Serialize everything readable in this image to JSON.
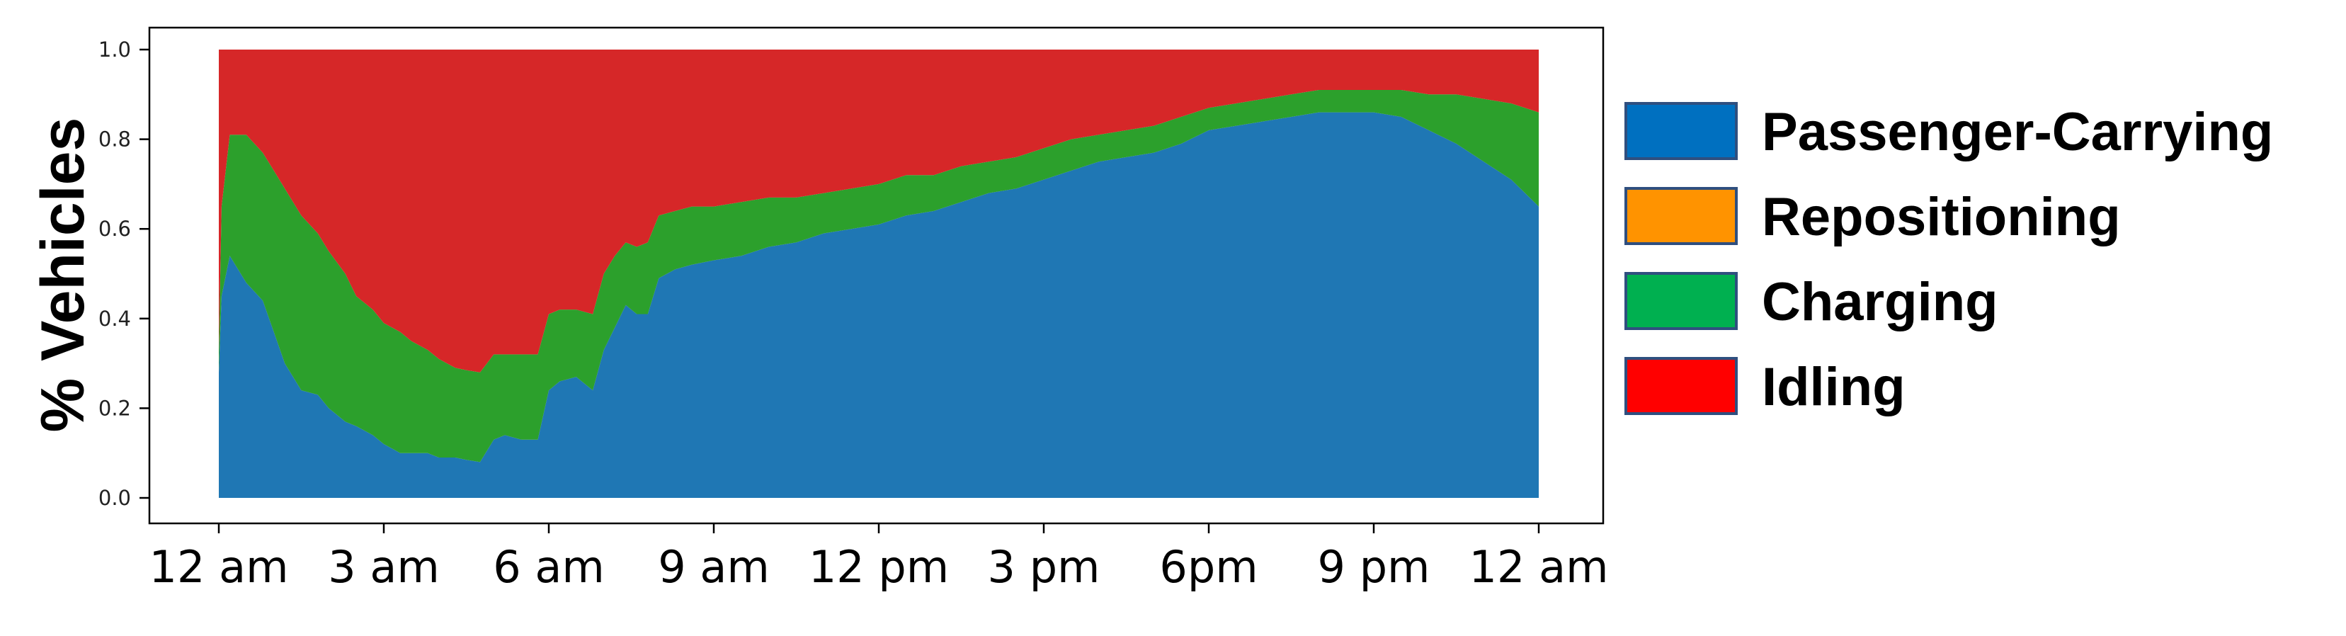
{
  "chart_data": {
    "type": "area",
    "stacked": true,
    "ylabel": "% Vehicles",
    "xlabel": "",
    "ylim": [
      0,
      1.05
    ],
    "yticks": [
      "0.0",
      "0.2",
      "0.4",
      "0.6",
      "0.8",
      "1.0"
    ],
    "ytick_values": [
      0.0,
      0.2,
      0.4,
      0.6,
      0.8,
      1.0
    ],
    "x_range_hours": [
      0,
      24
    ],
    "xticks": [
      {
        "hour": 0,
        "label": "12 am"
      },
      {
        "hour": 3,
        "label": "3 am"
      },
      {
        "hour": 6,
        "label": "6 am"
      },
      {
        "hour": 9,
        "label": "9 am"
      },
      {
        "hour": 12,
        "label": "12 pm"
      },
      {
        "hour": 15,
        "label": "3 pm"
      },
      {
        "hour": 18,
        "label": "6pm"
      },
      {
        "hour": 21,
        "label": "9 pm"
      },
      {
        "hour": 24,
        "label": "12 am"
      }
    ],
    "legend_position": "right",
    "grid": false,
    "x": [
      0,
      0.05,
      0.2,
      0.5,
      0.8,
      1.0,
      1.2,
      1.5,
      1.8,
      2.0,
      2.3,
      2.5,
      2.8,
      3.0,
      3.3,
      3.5,
      3.8,
      4.0,
      4.3,
      4.5,
      4.75,
      5.0,
      5.2,
      5.5,
      5.8,
      6.0,
      6.2,
      6.5,
      6.8,
      7.0,
      7.2,
      7.4,
      7.6,
      7.8,
      8.0,
      8.3,
      8.6,
      9.0,
      9.5,
      10.0,
      10.5,
      11.0,
      11.5,
      12.0,
      12.5,
      13.0,
      13.5,
      14.0,
      14.5,
      15.0,
      15.5,
      16.0,
      16.5,
      17.0,
      17.5,
      18.0,
      18.5,
      19.0,
      19.5,
      20.0,
      20.5,
      21.0,
      21.5,
      22.0,
      22.5,
      23.0,
      23.5,
      24.0
    ],
    "series": [
      {
        "name": "Passenger-Carrying",
        "color": "#1f77b4",
        "values": [
          0.28,
          0.45,
          0.54,
          0.48,
          0.44,
          0.37,
          0.3,
          0.24,
          0.23,
          0.2,
          0.17,
          0.16,
          0.14,
          0.12,
          0.1,
          0.1,
          0.1,
          0.09,
          0.09,
          0.085,
          0.08,
          0.13,
          0.14,
          0.13,
          0.13,
          0.24,
          0.26,
          0.27,
          0.24,
          0.33,
          0.38,
          0.43,
          0.41,
          0.41,
          0.49,
          0.51,
          0.52,
          0.53,
          0.54,
          0.56,
          0.57,
          0.59,
          0.6,
          0.61,
          0.63,
          0.64,
          0.66,
          0.68,
          0.69,
          0.71,
          0.73,
          0.75,
          0.76,
          0.77,
          0.79,
          0.82,
          0.83,
          0.84,
          0.85,
          0.86,
          0.86,
          0.86,
          0.85,
          0.82,
          0.79,
          0.75,
          0.71,
          0.65
        ]
      },
      {
        "name": "Repositioning",
        "color": "#ff8c00",
        "values": [
          0,
          0,
          0,
          0,
          0,
          0,
          0,
          0,
          0,
          0,
          0,
          0,
          0,
          0,
          0,
          0,
          0,
          0,
          0,
          0,
          0,
          0,
          0,
          0,
          0,
          0,
          0,
          0,
          0,
          0,
          0,
          0,
          0,
          0,
          0,
          0,
          0,
          0,
          0,
          0,
          0,
          0,
          0,
          0,
          0,
          0,
          0,
          0,
          0,
          0,
          0,
          0,
          0,
          0,
          0,
          0,
          0,
          0,
          0,
          0,
          0,
          0,
          0,
          0,
          0,
          0,
          0,
          0
        ]
      },
      {
        "name": "Charging",
        "color": "#2ca02c",
        "values": [
          0.05,
          0.2,
          0.27,
          0.33,
          0.33,
          0.36,
          0.39,
          0.39,
          0.36,
          0.35,
          0.33,
          0.29,
          0.28,
          0.27,
          0.27,
          0.25,
          0.23,
          0.22,
          0.2,
          0.2,
          0.2,
          0.19,
          0.18,
          0.19,
          0.19,
          0.17,
          0.16,
          0.15,
          0.17,
          0.17,
          0.16,
          0.14,
          0.15,
          0.16,
          0.14,
          0.13,
          0.13,
          0.12,
          0.12,
          0.11,
          0.1,
          0.09,
          0.09,
          0.09,
          0.09,
          0.08,
          0.08,
          0.07,
          0.07,
          0.07,
          0.07,
          0.06,
          0.06,
          0.06,
          0.06,
          0.05,
          0.05,
          0.05,
          0.05,
          0.05,
          0.05,
          0.05,
          0.06,
          0.08,
          0.11,
          0.14,
          0.17,
          0.21
        ]
      },
      {
        "name": "Idling",
        "color": "#d62728",
        "values": [
          0.67,
          0.35,
          0.19,
          0.19,
          0.23,
          0.27,
          0.31,
          0.37,
          0.41,
          0.45,
          0.5,
          0.55,
          0.58,
          0.61,
          0.63,
          0.65,
          0.67,
          0.69,
          0.71,
          0.715,
          0.72,
          0.68,
          0.68,
          0.68,
          0.68,
          0.59,
          0.58,
          0.58,
          0.59,
          0.5,
          0.46,
          0.43,
          0.44,
          0.43,
          0.37,
          0.36,
          0.35,
          0.35,
          0.34,
          0.33,
          0.33,
          0.32,
          0.31,
          0.3,
          0.28,
          0.28,
          0.26,
          0.25,
          0.24,
          0.22,
          0.2,
          0.19,
          0.18,
          0.17,
          0.15,
          0.13,
          0.12,
          0.11,
          0.1,
          0.09,
          0.09,
          0.09,
          0.09,
          0.1,
          0.1,
          0.11,
          0.12,
          0.14
        ]
      }
    ],
    "legend": [
      {
        "label": "Passenger-Carrying",
        "color": "#0070c0"
      },
      {
        "label": "Repositioning",
        "color": "#ff9300"
      },
      {
        "label": "Charging",
        "color": "#00b050"
      },
      {
        "label": "Idling",
        "color": "#ff0000"
      }
    ]
  }
}
